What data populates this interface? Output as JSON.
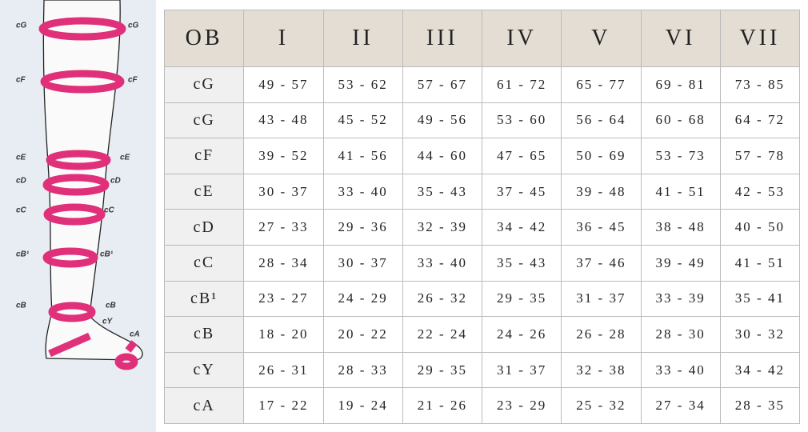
{
  "leg": {
    "left_labels": [
      "cG",
      "cF",
      "cE",
      "cD",
      "cC",
      "cB¹",
      "cB"
    ],
    "right_labels": [
      "cG",
      "cF",
      "cE",
      "cD",
      "cC",
      "cB¹",
      "cB",
      "cY",
      "cA"
    ]
  },
  "table": {
    "header": [
      "OB",
      "I",
      "II",
      "III",
      "IV",
      "V",
      "VI",
      "VII"
    ],
    "rows": [
      [
        "cG",
        "49 - 57",
        "53 - 62",
        "57 - 67",
        "61 - 72",
        "65 - 77",
        "69 - 81",
        "73 - 85"
      ],
      [
        "cG",
        "43 - 48",
        "45 - 52",
        "49 - 56",
        "53 - 60",
        "56 - 64",
        "60 - 68",
        "64 - 72"
      ],
      [
        "cF",
        "39 - 52",
        "41 - 56",
        "44 - 60",
        "47 - 65",
        "50 - 69",
        "53 - 73",
        "57 - 78"
      ],
      [
        "cE",
        "30 - 37",
        "33 - 40",
        "35 - 43",
        "37 - 45",
        "39 - 48",
        "41 - 51",
        "42 - 53"
      ],
      [
        "cD",
        "27 - 33",
        "29 - 36",
        "32 - 39",
        "34 - 42",
        "36 - 45",
        "38 - 48",
        "40 - 50"
      ],
      [
        "cC",
        "28 - 34",
        "30 - 37",
        "33 - 40",
        "35 - 43",
        "37 - 46",
        "39 - 49",
        "41 - 51"
      ],
      [
        "cB¹",
        "23 - 27",
        "24 - 29",
        "26 - 32",
        "29 - 35",
        "31 - 37",
        "33 - 39",
        "35 - 41"
      ],
      [
        "cB",
        "18 - 20",
        "20 - 22",
        "22 - 24",
        "24 - 26",
        "26 - 28",
        "28 - 30",
        "30 - 32"
      ],
      [
        "cY",
        "26 - 31",
        "28 - 33",
        "29 - 35",
        "31 - 37",
        "32 - 38",
        "33 - 40",
        "34 - 42"
      ],
      [
        "cA",
        "17 - 22",
        "19 - 24",
        "21 - 26",
        "23 - 29",
        "25 - 32",
        "27 - 34",
        "28 - 35"
      ]
    ]
  }
}
